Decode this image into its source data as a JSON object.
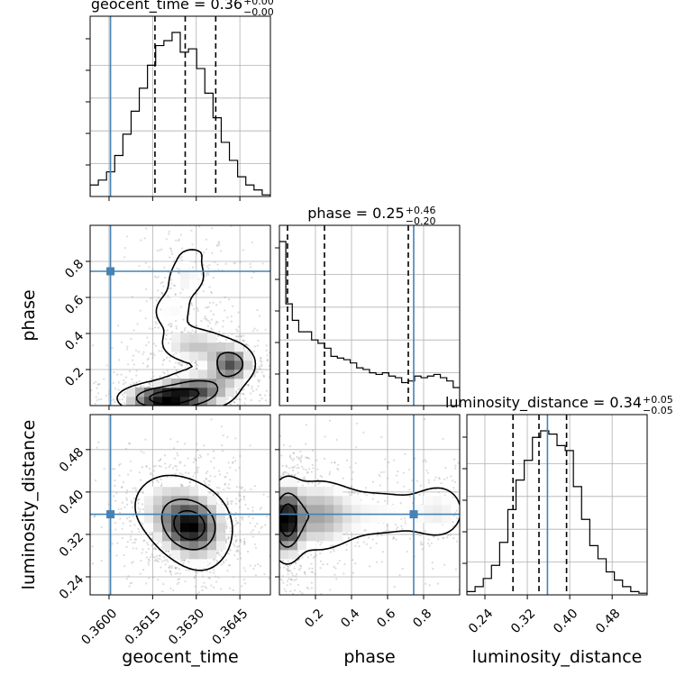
{
  "chart_data": {
    "type": "corner",
    "truth_color": "#4682b4",
    "parameters": [
      {
        "name": "geocent_time",
        "axis_label": "geocent_time",
        "title": {
          "base": "geocent_time = 0.36",
          "plus": "+0.00",
          "minus": "−0.00"
        },
        "range": [
          0.35935,
          0.36555
        ],
        "ticks": [
          0.36,
          0.3615,
          0.363,
          0.3645
        ],
        "tick_labels": [
          "0.3600",
          "0.3615",
          "0.3630",
          "0.3645"
        ],
        "truth": 0.36005,
        "quantiles": [
          0.36158,
          0.36262,
          0.36367
        ],
        "hist": [
          0.07,
          0.1,
          0.15,
          0.25,
          0.38,
          0.52,
          0.66,
          0.8,
          0.92,
          0.95,
          1.0,
          0.88,
          0.9,
          0.78,
          0.63,
          0.48,
          0.33,
          0.22,
          0.12,
          0.07,
          0.04,
          0.01
        ]
      },
      {
        "name": "phase",
        "axis_label": "phase",
        "title": {
          "base": "phase = 0.25",
          "plus": "+0.46",
          "minus": "−0.20"
        },
        "range": [
          0.0,
          1.0
        ],
        "ticks": [
          0.2,
          0.4,
          0.6,
          0.8
        ],
        "tick_labels": [
          "0.2",
          "0.4",
          "0.6",
          "0.8"
        ],
        "truth": 0.745,
        "quantiles": [
          0.045,
          0.25,
          0.715
        ],
        "hist": [
          1.0,
          0.62,
          0.52,
          0.45,
          0.45,
          0.4,
          0.38,
          0.35,
          0.3,
          0.29,
          0.28,
          0.26,
          0.23,
          0.22,
          0.2,
          0.19,
          0.2,
          0.18,
          0.17,
          0.14,
          0.15,
          0.18,
          0.17,
          0.18,
          0.19,
          0.17,
          0.15,
          0.11
        ]
      },
      {
        "name": "luminosity_distance",
        "axis_label": "luminosity_distance",
        "title": {
          "base": "luminosity_distance = 0.34",
          "plus": "+0.05",
          "minus": "−0.05"
        },
        "range": [
          0.206,
          0.546
        ],
        "ticks": [
          0.24,
          0.32,
          0.4,
          0.48
        ],
        "tick_labels": [
          "0.24",
          "0.32",
          "0.40",
          "0.48"
        ],
        "truth": 0.358,
        "quantiles": [
          0.293,
          0.342,
          0.394
        ],
        "hist": [
          0.02,
          0.05,
          0.1,
          0.18,
          0.32,
          0.52,
          0.7,
          0.82,
          0.96,
          1.0,
          0.98,
          0.91,
          0.88,
          0.66,
          0.46,
          0.3,
          0.22,
          0.14,
          0.09,
          0.05,
          0.02,
          0.01
        ]
      }
    ],
    "y_tick_labels": {
      "phase": [
        "0.2",
        "0.4",
        "0.6",
        "0.8"
      ],
      "luminosity_distance": [
        "0.24",
        "0.32",
        "0.40",
        "0.48"
      ]
    },
    "contour_levels": [
      0.12,
      0.45,
      0.75
    ],
    "density_2d": {
      "geocent_time__phase": {
        "blobs": [
          {
            "x": 0.36187,
            "y": 0.04,
            "sx": 0.0008,
            "sy": 0.045,
            "w": 1.0
          },
          {
            "x": 0.3631,
            "y": 0.09,
            "sx": 0.00075,
            "sy": 0.06,
            "w": 0.65
          },
          {
            "x": 0.3642,
            "y": 0.23,
            "sx": 0.00045,
            "sy": 0.06,
            "w": 0.75
          },
          {
            "x": 0.363,
            "y": 0.33,
            "sx": 0.00075,
            "sy": 0.06,
            "w": 0.38
          },
          {
            "x": 0.36215,
            "y": 0.52,
            "sx": 0.0006,
            "sy": 0.09,
            "w": 0.2
          },
          {
            "x": 0.3627,
            "y": 0.72,
            "sx": 0.00055,
            "sy": 0.08,
            "w": 0.22
          },
          {
            "x": 0.363,
            "y": 0.86,
            "sx": 0.0008,
            "sy": 0.05,
            "w": 0.1
          }
        ]
      },
      "geocent_time__luminosity_distance": {
        "blobs": [
          {
            "x": 0.36275,
            "y": 0.335,
            "sx": 0.0006,
            "sy": 0.03,
            "w": 1.0
          },
          {
            "x": 0.362,
            "y": 0.375,
            "sx": 0.0008,
            "sy": 0.04,
            "w": 0.45
          },
          {
            "x": 0.3632,
            "y": 0.32,
            "sx": 0.0007,
            "sy": 0.05,
            "w": 0.4
          }
        ]
      },
      "phase__luminosity_distance": {
        "blobs": [
          {
            "x": 0.04,
            "y": 0.345,
            "sx": 0.05,
            "sy": 0.04,
            "w": 1.0
          },
          {
            "x": 0.2,
            "y": 0.355,
            "sx": 0.12,
            "sy": 0.04,
            "w": 0.45
          },
          {
            "x": 0.55,
            "y": 0.36,
            "sx": 0.25,
            "sy": 0.04,
            "w": 0.22
          },
          {
            "x": 0.9,
            "y": 0.365,
            "sx": 0.1,
            "sy": 0.04,
            "w": 0.18
          }
        ]
      }
    }
  }
}
